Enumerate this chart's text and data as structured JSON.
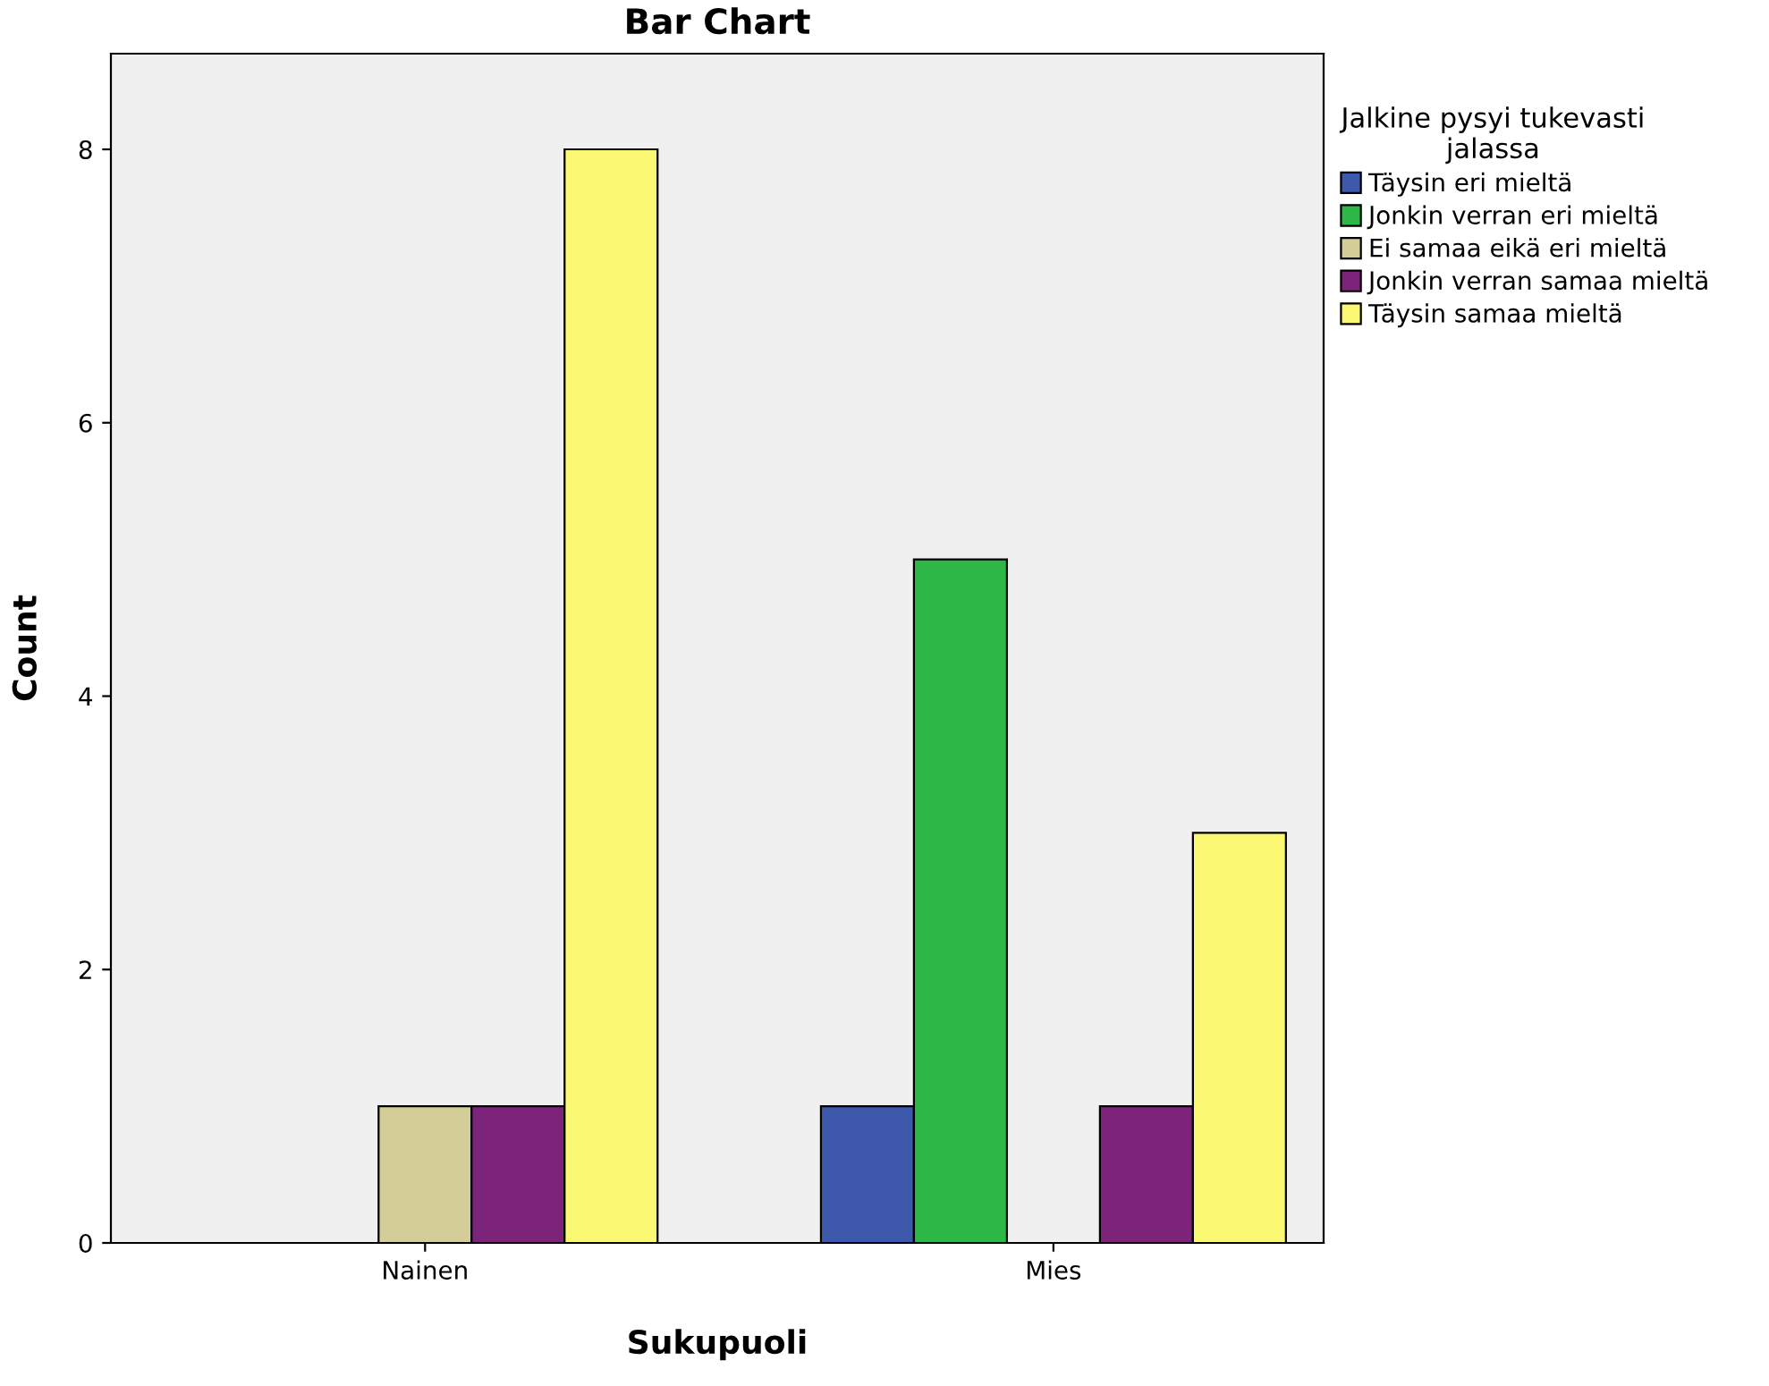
{
  "chart_data": {
    "type": "bar",
    "title": "Bar Chart",
    "xlabel": "Sukupuoli",
    "ylabel": "Count",
    "legend_title": "Jalkine pysyi tukevasti\njalassa",
    "categories": [
      "Nainen",
      "Mies"
    ],
    "series": [
      {
        "name": "Täysin eri mieltä",
        "color": "#3e58ac",
        "values": [
          null,
          1
        ]
      },
      {
        "name": "Jonkin verran eri mieltä",
        "color": "#2eb848",
        "values": [
          null,
          5
        ]
      },
      {
        "name": "Ei samaa eikä eri mieltä",
        "color": "#d3ce97",
        "values": [
          1,
          null
        ]
      },
      {
        "name": "Jonkin verran samaa mieltä",
        "color": "#7b2479",
        "values": [
          1,
          1
        ]
      },
      {
        "name": "Täysin samaa mieltä",
        "color": "#fbf873",
        "values": [
          8,
          3
        ]
      }
    ],
    "ylim": [
      0,
      8.7
    ],
    "yticks": [
      0,
      2,
      4,
      6,
      8
    ],
    "grid": false,
    "legend": "top right"
  }
}
